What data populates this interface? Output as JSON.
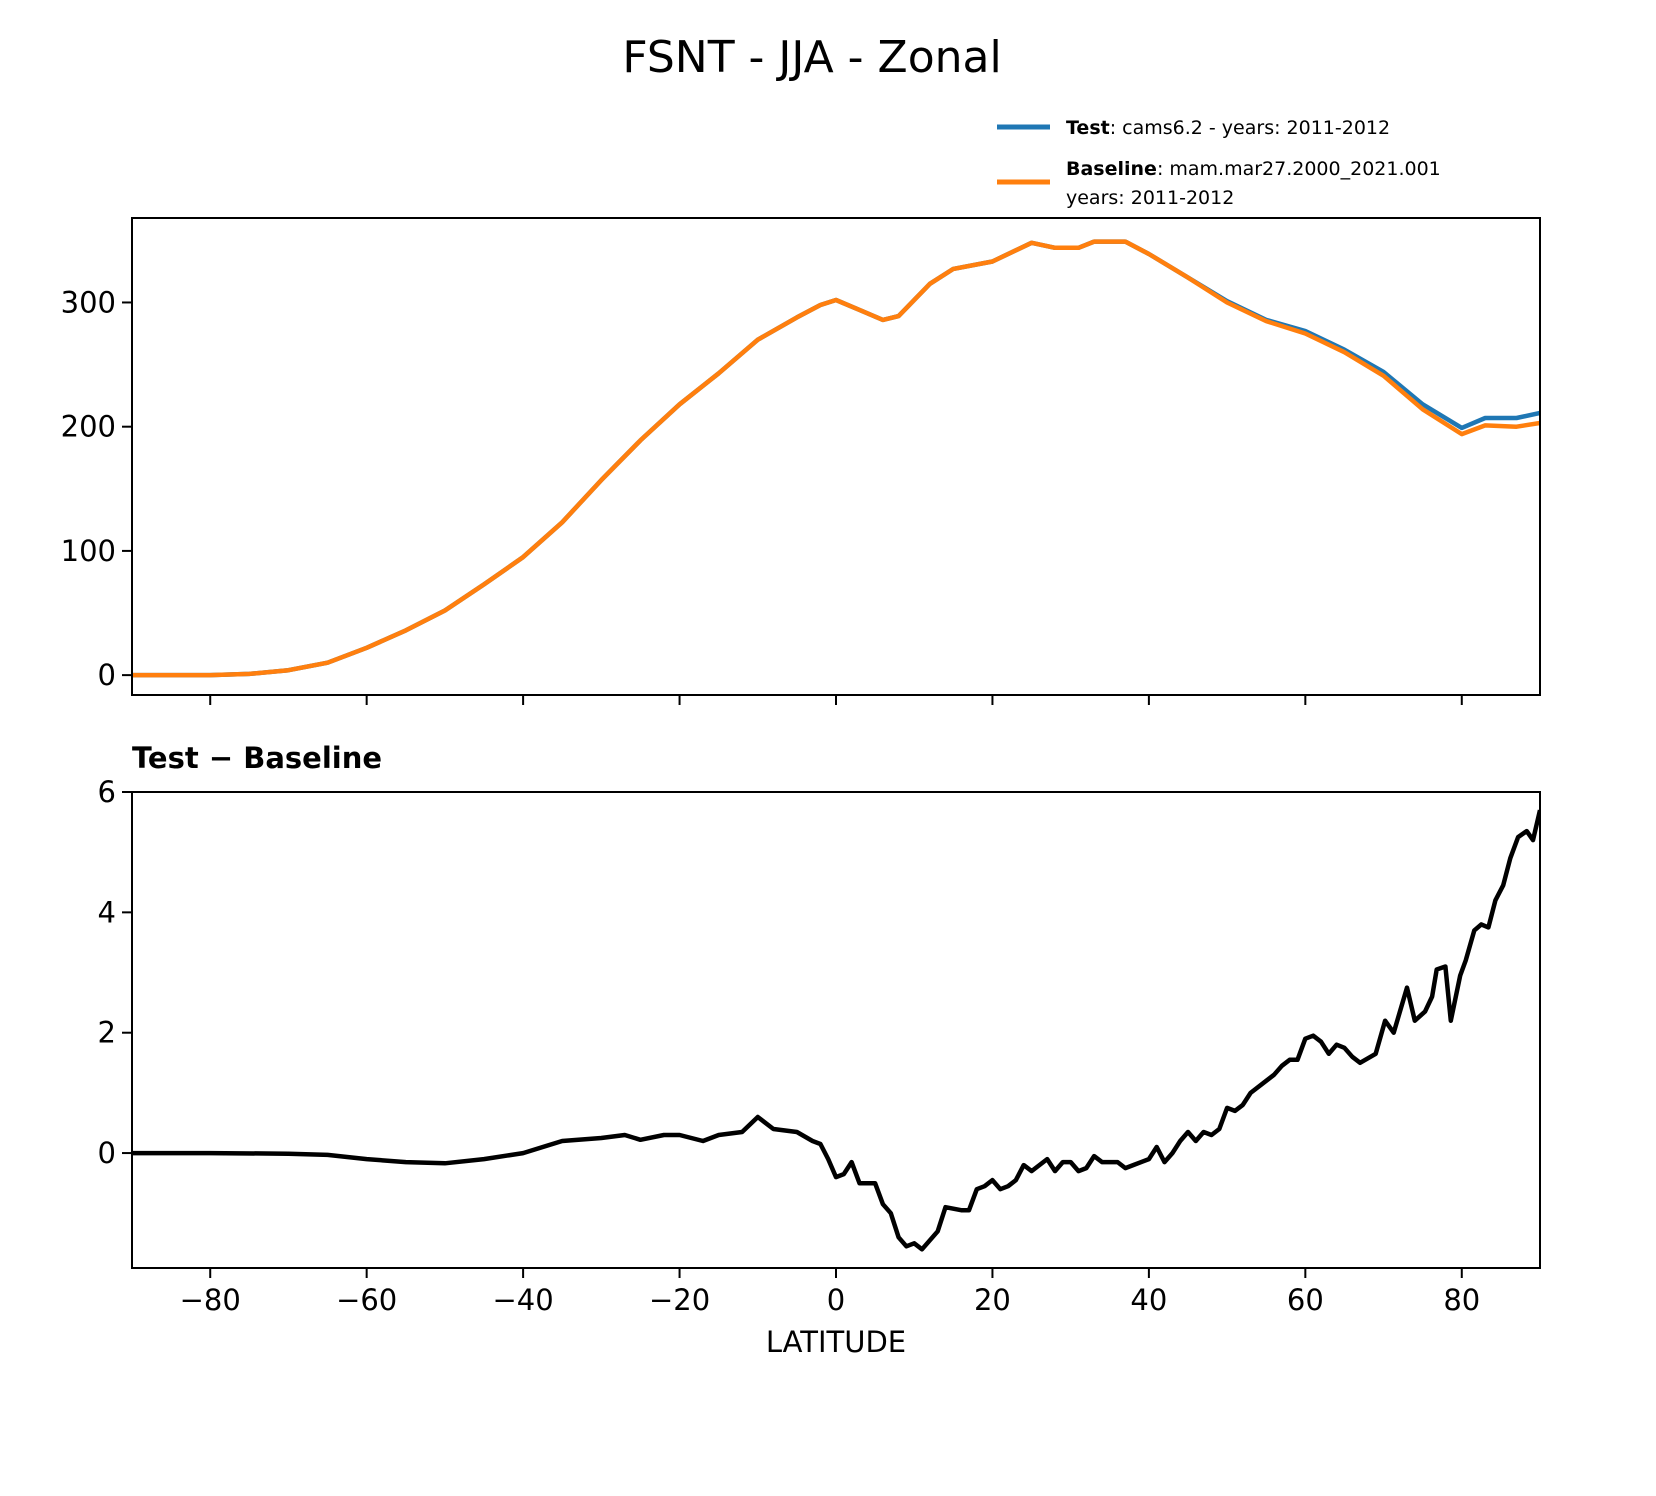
{
  "chart_data": [
    {
      "type": "line",
      "title": "FSNT - JJA - Zonal",
      "xlabel": "",
      "ylabel": "",
      "xlim": [
        -90,
        90
      ],
      "ylim": [
        -16,
        368
      ],
      "xticks": [
        -80,
        -60,
        -40,
        -20,
        0,
        20,
        40,
        60,
        80
      ],
      "yticks": [
        0,
        100,
        200,
        300
      ],
      "ytick_labels": [
        "0",
        "100",
        "200",
        "300"
      ],
      "legend": {
        "placement": "top-right, above axes",
        "entries": [
          {
            "bold": "Test",
            "text": ": cams6.2 - years: 2011-2012",
            "color": "#1f77b4"
          },
          {
            "bold": "Baseline",
            "text": ": mam.mar27.2000_2021.001",
            "text2": "years: 2011-2012",
            "color": "#ff7f0e"
          }
        ]
      },
      "x": [
        -90,
        -85,
        -80,
        -75,
        -70,
        -65,
        -60,
        -55,
        -50,
        -45,
        -40,
        -35,
        -30,
        -25,
        -20,
        -15,
        -10,
        -5,
        -2,
        0,
        3,
        6,
        8,
        12,
        15,
        20,
        25,
        28,
        31,
        33,
        37,
        40,
        45,
        50,
        55,
        60,
        65,
        70,
        75,
        80,
        83,
        87,
        90
      ],
      "series": [
        {
          "name": "Test",
          "color": "#1f77b4",
          "values": [
            0,
            0,
            0,
            1,
            4,
            10,
            22,
            36,
            52,
            73,
            95,
            123,
            157,
            189,
            218,
            243,
            270,
            288,
            298,
            302,
            294,
            286,
            289,
            315,
            327,
            333,
            348,
            344,
            344,
            349,
            349,
            339,
            320,
            301,
            286,
            277,
            262,
            244,
            218,
            199,
            207,
            207,
            211
          ]
        },
        {
          "name": "Baseline",
          "color": "#ff7f0e",
          "values": [
            0,
            0,
            0,
            1,
            4,
            10,
            22,
            36,
            52,
            73,
            95,
            123,
            157,
            189,
            218,
            243,
            270,
            288,
            298,
            302,
            294,
            286,
            289,
            315,
            327,
            333,
            348,
            344,
            344,
            349,
            349,
            339,
            320,
            300,
            285,
            275,
            260,
            241,
            214,
            194,
            201,
            200,
            203
          ]
        }
      ]
    },
    {
      "type": "line",
      "title": "Test − Baseline",
      "xlabel": "LATITUDE",
      "ylabel": "",
      "xlim": [
        -90,
        90
      ],
      "ylim": [
        -1.91,
        6
      ],
      "xticks": [
        -80,
        -60,
        -40,
        -20,
        0,
        20,
        40,
        60,
        80
      ],
      "xtick_labels": [
        "−80",
        "−60",
        "−40",
        "−20",
        "0",
        "20",
        "40",
        "60",
        "80"
      ],
      "yticks": [
        0,
        2,
        4,
        6
      ],
      "ytick_labels": [
        "0",
        "2",
        "4",
        "6"
      ],
      "series": [
        {
          "name": "Test - Baseline",
          "color": "#000000",
          "x": [
            -90,
            -80,
            -70,
            -65,
            -60,
            -55,
            -50,
            -45,
            -40,
            -35,
            -30,
            -27,
            -25,
            -22,
            -20,
            -17,
            -15,
            -12,
            -10,
            -8,
            -5,
            -3,
            -2,
            -1,
            0,
            1,
            2,
            3,
            5,
            6,
            7,
            8,
            9,
            10,
            11,
            13,
            14,
            16,
            17,
            18,
            19,
            20,
            21,
            22,
            23,
            24,
            25,
            27,
            28,
            29,
            30,
            31,
            32,
            33,
            34,
            36,
            37,
            38,
            40,
            41,
            42,
            43,
            44,
            45,
            46,
            47,
            48,
            49,
            50,
            51,
            52,
            53,
            55,
            56,
            57,
            58,
            59,
            60,
            61,
            62,
            63,
            64,
            65,
            66,
            67,
            69,
            70.2,
            71.3,
            73,
            74,
            75.3,
            76.2,
            76.8,
            77.9,
            78.6,
            79.8,
            80.5,
            81.6,
            82.5,
            83.4,
            84.3,
            85.3,
            86.2,
            87.2,
            88.3,
            89.1,
            90
          ],
          "values": [
            0,
            0,
            -0.01,
            -0.03,
            -0.1,
            -0.15,
            -0.17,
            -0.1,
            0,
            0.2,
            0.25,
            0.3,
            0.22,
            0.3,
            0.3,
            0.2,
            0.3,
            0.35,
            0.6,
            0.4,
            0.35,
            0.2,
            0.15,
            -0.1,
            -0.4,
            -0.35,
            -0.15,
            -0.5,
            -0.5,
            -0.85,
            -1.0,
            -1.4,
            -1.55,
            -1.5,
            -1.6,
            -1.3,
            -0.9,
            -0.95,
            -0.95,
            -0.6,
            -0.55,
            -0.45,
            -0.6,
            -0.55,
            -0.45,
            -0.2,
            -0.3,
            -0.1,
            -0.3,
            -0.15,
            -0.15,
            -0.3,
            -0.25,
            -0.05,
            -0.15,
            -0.15,
            -0.25,
            -0.2,
            -0.1,
            0.1,
            -0.15,
            0,
            0.2,
            0.35,
            0.2,
            0.35,
            0.3,
            0.4,
            0.75,
            0.7,
            0.8,
            1.0,
            1.2,
            1.3,
            1.45,
            1.55,
            1.55,
            1.9,
            1.95,
            1.85,
            1.65,
            1.8,
            1.75,
            1.6,
            1.5,
            1.65,
            2.2,
            2.0,
            2.75,
            2.2,
            2.35,
            2.6,
            3.05,
            3.1,
            2.2,
            2.95,
            3.2,
            3.7,
            3.8,
            3.75,
            4.2,
            4.45,
            4.9,
            5.25,
            5.35,
            5.2,
            5.7
          ]
        }
      ]
    }
  ]
}
